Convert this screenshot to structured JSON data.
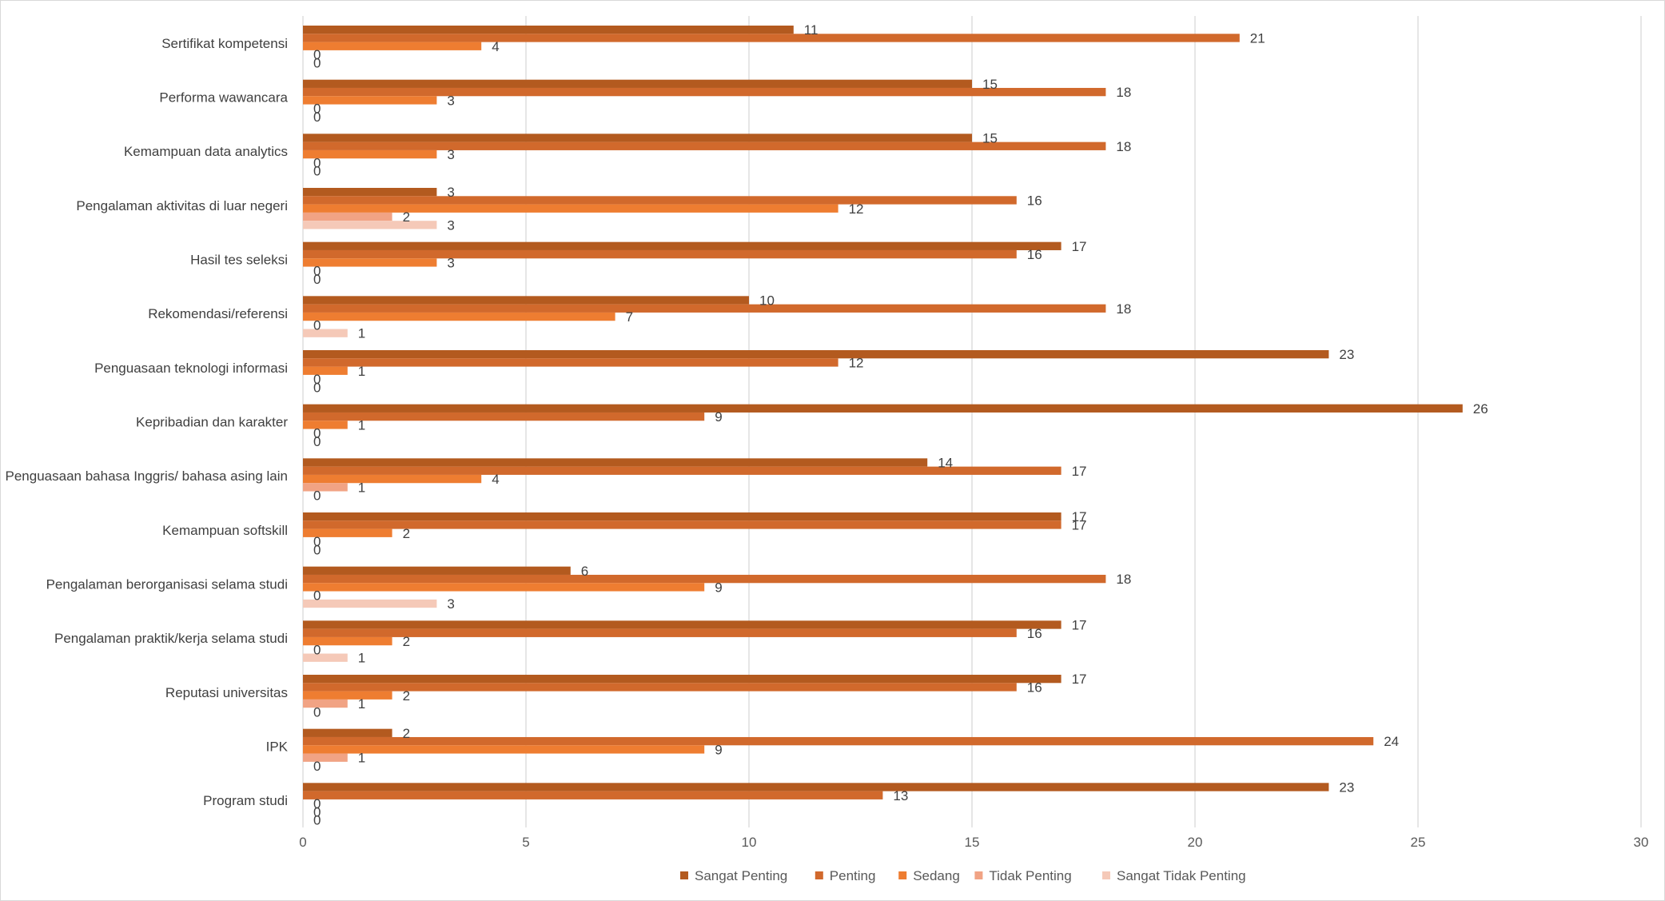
{
  "chart_data": {
    "type": "bar",
    "orientation": "horizontal",
    "categories": [
      "Sertifikat kompetensi",
      "Performa wawancara",
      "Kemampuan data analytics",
      "Pengalaman aktivitas di luar negeri",
      "Hasil tes seleksi",
      "Rekomendasi/referensi",
      "Penguasaan teknologi informasi",
      "Kepribadian dan karakter",
      "Penguasaan bahasa Inggris/ bahasa asing lain",
      "Kemampuan softskill",
      "Pengalaman berorganisasi selama studi",
      "Pengalaman praktik/kerja selama studi",
      "Reputasi universitas",
      "IPK",
      "Program studi"
    ],
    "series": [
      {
        "name": "Sangat Penting",
        "color": "#B35A1F",
        "values": [
          11,
          15,
          15,
          3,
          17,
          10,
          23,
          26,
          14,
          17,
          6,
          17,
          17,
          2,
          23
        ]
      },
      {
        "name": "Penting",
        "color": "#D1692C",
        "values": [
          21,
          18,
          18,
          16,
          16,
          18,
          12,
          9,
          17,
          17,
          18,
          16,
          16,
          24,
          13
        ]
      },
      {
        "name": "Sedang",
        "color": "#EE7D31",
        "values": [
          4,
          3,
          3,
          12,
          3,
          7,
          1,
          1,
          4,
          2,
          9,
          2,
          2,
          9,
          0
        ]
      },
      {
        "name": "Tidak Penting",
        "color": "#F1A384",
        "values": [
          0,
          0,
          0,
          2,
          0,
          0,
          0,
          0,
          1,
          0,
          0,
          0,
          1,
          1,
          0
        ]
      },
      {
        "name": "Sangat Tidak Penting",
        "color": "#F5C9B8",
        "values": [
          0,
          0,
          0,
          3,
          0,
          1,
          0,
          0,
          0,
          0,
          3,
          1,
          0,
          0,
          0
        ]
      }
    ],
    "xlim": [
      0,
      30
    ],
    "xticks": [
      0,
      5,
      10,
      15,
      20,
      25,
      30
    ],
    "grid": "vertical",
    "legend": "bottom",
    "title": "",
    "xlabel": "",
    "ylabel": "",
    "label_color": "#404040",
    "tick_color": "#595959",
    "grid_color": "#d9d9d9"
  }
}
